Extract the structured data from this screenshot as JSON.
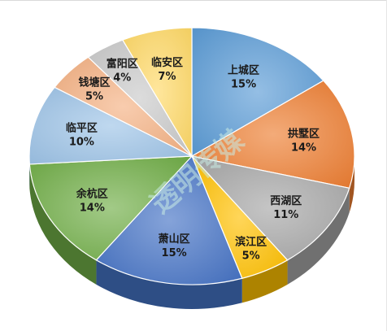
{
  "chart_data": {
    "type": "pie",
    "style": "3d",
    "title": "",
    "categories": [
      "上城区",
      "拱墅区",
      "西湖区",
      "滨江区",
      "萧山区",
      "余杭区",
      "临平区",
      "钱塘区",
      "富阳区",
      "临安区"
    ],
    "values": [
      15,
      14,
      11,
      5,
      15,
      14,
      10,
      5,
      4,
      7
    ],
    "value_labels": [
      "15%",
      "14%",
      "11%",
      "5%",
      "15%",
      "14%",
      "10%",
      "5%",
      "4%",
      "7%"
    ],
    "colors": [
      "#5b9bd5",
      "#ed7d31",
      "#a5a5a5",
      "#ffc000",
      "#4472c4",
      "#70ad47",
      "#9dc3e6",
      "#f4b183",
      "#c9c9c9",
      "#ffd966"
    ],
    "legend": "none"
  },
  "watermark": {
    "text": "透明传媒",
    "color": "#c8ebe3"
  }
}
